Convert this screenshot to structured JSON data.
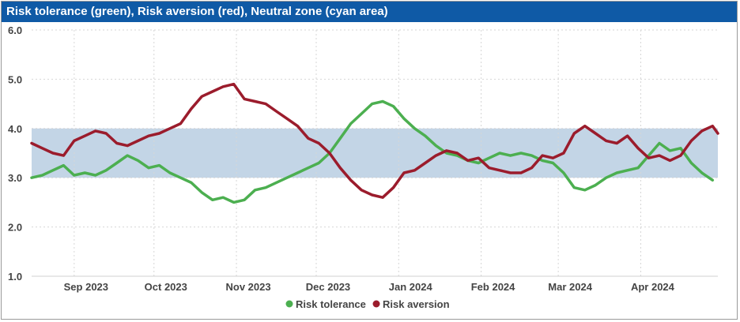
{
  "title": "Risk tolerance (green), Risk aversion (red), Neutral zone (cyan area)",
  "colors": {
    "tolerance": "#4caf50",
    "aversion": "#9b1c2c",
    "band": "#c3d5e6",
    "title_bg": "#0f5aa6"
  },
  "chart_data": {
    "type": "line",
    "ylim": [
      1.0,
      6.0
    ],
    "yticks": [
      "1.0",
      "2.0",
      "3.0",
      "4.0",
      "5.0",
      "6.0"
    ],
    "xlim": [
      "2023-08-16",
      "2024-04-30"
    ],
    "xticks": [
      {
        "date": "2023-09-01",
        "label": "Sep 2023"
      },
      {
        "date": "2023-10-01",
        "label": "Oct 2023"
      },
      {
        "date": "2023-11-01",
        "label": "Nov 2023"
      },
      {
        "date": "2023-12-01",
        "label": "Dec 2023"
      },
      {
        "date": "2024-01-01",
        "label": "Jan 2024"
      },
      {
        "date": "2024-02-01",
        "label": "Feb 2024"
      },
      {
        "date": "2024-03-01",
        "label": "Mar 2024"
      },
      {
        "date": "2024-04-01",
        "label": "Apr 2024"
      }
    ],
    "neutral_zone": [
      3.0,
      4.0
    ],
    "grid": true,
    "legend_position": "bottom",
    "series": [
      {
        "name": "Risk tolerance",
        "color": "#4caf50",
        "points": [
          [
            "2023-08-16",
            3.0
          ],
          [
            "2023-08-20",
            3.05
          ],
          [
            "2023-08-24",
            3.15
          ],
          [
            "2023-08-28",
            3.25
          ],
          [
            "2023-09-01",
            3.05
          ],
          [
            "2023-09-05",
            3.1
          ],
          [
            "2023-09-09",
            3.05
          ],
          [
            "2023-09-13",
            3.15
          ],
          [
            "2023-09-17",
            3.3
          ],
          [
            "2023-09-21",
            3.45
          ],
          [
            "2023-09-25",
            3.35
          ],
          [
            "2023-09-29",
            3.2
          ],
          [
            "2023-10-03",
            3.25
          ],
          [
            "2023-10-07",
            3.1
          ],
          [
            "2023-10-11",
            3.0
          ],
          [
            "2023-10-15",
            2.9
          ],
          [
            "2023-10-19",
            2.7
          ],
          [
            "2023-10-23",
            2.55
          ],
          [
            "2023-10-27",
            2.6
          ],
          [
            "2023-10-31",
            2.5
          ],
          [
            "2023-11-04",
            2.55
          ],
          [
            "2023-11-08",
            2.75
          ],
          [
            "2023-11-12",
            2.8
          ],
          [
            "2023-11-16",
            2.9
          ],
          [
            "2023-11-20",
            3.0
          ],
          [
            "2023-11-24",
            3.1
          ],
          [
            "2023-11-28",
            3.2
          ],
          [
            "2023-12-02",
            3.3
          ],
          [
            "2023-12-06",
            3.5
          ],
          [
            "2023-12-10",
            3.8
          ],
          [
            "2023-12-14",
            4.1
          ],
          [
            "2023-12-18",
            4.3
          ],
          [
            "2023-12-22",
            4.5
          ],
          [
            "2023-12-26",
            4.55
          ],
          [
            "2023-12-30",
            4.45
          ],
          [
            "2024-01-03",
            4.2
          ],
          [
            "2024-01-07",
            4.0
          ],
          [
            "2024-01-11",
            3.85
          ],
          [
            "2024-01-15",
            3.65
          ],
          [
            "2024-01-19",
            3.5
          ],
          [
            "2024-01-23",
            3.45
          ],
          [
            "2024-01-27",
            3.35
          ],
          [
            "2024-01-31",
            3.3
          ],
          [
            "2024-02-04",
            3.4
          ],
          [
            "2024-02-08",
            3.5
          ],
          [
            "2024-02-12",
            3.45
          ],
          [
            "2024-02-16",
            3.5
          ],
          [
            "2024-02-20",
            3.45
          ],
          [
            "2024-02-24",
            3.35
          ],
          [
            "2024-02-28",
            3.3
          ],
          [
            "2024-03-03",
            3.1
          ],
          [
            "2024-03-07",
            2.8
          ],
          [
            "2024-03-11",
            2.75
          ],
          [
            "2024-03-15",
            2.85
          ],
          [
            "2024-03-19",
            3.0
          ],
          [
            "2024-03-23",
            3.1
          ],
          [
            "2024-03-27",
            3.15
          ],
          [
            "2024-03-31",
            3.2
          ],
          [
            "2024-04-04",
            3.45
          ],
          [
            "2024-04-08",
            3.7
          ],
          [
            "2024-04-12",
            3.55
          ],
          [
            "2024-04-16",
            3.6
          ],
          [
            "2024-04-20",
            3.3
          ],
          [
            "2024-04-24",
            3.1
          ],
          [
            "2024-04-28",
            2.95
          ]
        ]
      },
      {
        "name": "Risk aversion",
        "color": "#9b1c2c",
        "points": [
          [
            "2023-08-16",
            3.7
          ],
          [
            "2023-08-20",
            3.6
          ],
          [
            "2023-08-24",
            3.5
          ],
          [
            "2023-08-28",
            3.45
          ],
          [
            "2023-09-01",
            3.75
          ],
          [
            "2023-09-05",
            3.85
          ],
          [
            "2023-09-09",
            3.95
          ],
          [
            "2023-09-13",
            3.9
          ],
          [
            "2023-09-17",
            3.7
          ],
          [
            "2023-09-21",
            3.65
          ],
          [
            "2023-09-25",
            3.75
          ],
          [
            "2023-09-29",
            3.85
          ],
          [
            "2023-10-03",
            3.9
          ],
          [
            "2023-10-07",
            4.0
          ],
          [
            "2023-10-11",
            4.1
          ],
          [
            "2023-10-15",
            4.4
          ],
          [
            "2023-10-19",
            4.65
          ],
          [
            "2023-10-23",
            4.75
          ],
          [
            "2023-10-27",
            4.85
          ],
          [
            "2023-10-31",
            4.9
          ],
          [
            "2023-11-04",
            4.6
          ],
          [
            "2023-11-08",
            4.55
          ],
          [
            "2023-11-12",
            4.5
          ],
          [
            "2023-11-16",
            4.35
          ],
          [
            "2023-11-20",
            4.2
          ],
          [
            "2023-11-24",
            4.05
          ],
          [
            "2023-11-28",
            3.8
          ],
          [
            "2023-12-02",
            3.7
          ],
          [
            "2023-12-06",
            3.5
          ],
          [
            "2023-12-10",
            3.2
          ],
          [
            "2023-12-14",
            2.95
          ],
          [
            "2023-12-18",
            2.75
          ],
          [
            "2023-12-22",
            2.65
          ],
          [
            "2023-12-26",
            2.6
          ],
          [
            "2023-12-30",
            2.8
          ],
          [
            "2024-01-03",
            3.1
          ],
          [
            "2024-01-07",
            3.15
          ],
          [
            "2024-01-11",
            3.3
          ],
          [
            "2024-01-15",
            3.45
          ],
          [
            "2024-01-19",
            3.55
          ],
          [
            "2024-01-23",
            3.5
          ],
          [
            "2024-01-27",
            3.35
          ],
          [
            "2024-01-31",
            3.4
          ],
          [
            "2024-02-04",
            3.2
          ],
          [
            "2024-02-08",
            3.15
          ],
          [
            "2024-02-12",
            3.1
          ],
          [
            "2024-02-16",
            3.1
          ],
          [
            "2024-02-20",
            3.2
          ],
          [
            "2024-02-24",
            3.45
          ],
          [
            "2024-02-28",
            3.4
          ],
          [
            "2024-03-03",
            3.5
          ],
          [
            "2024-03-07",
            3.9
          ],
          [
            "2024-03-11",
            4.05
          ],
          [
            "2024-03-15",
            3.9
          ],
          [
            "2024-03-19",
            3.75
          ],
          [
            "2024-03-23",
            3.7
          ],
          [
            "2024-03-27",
            3.85
          ],
          [
            "2024-03-31",
            3.6
          ],
          [
            "2024-04-04",
            3.4
          ],
          [
            "2024-04-08",
            3.45
          ],
          [
            "2024-04-12",
            3.35
          ],
          [
            "2024-04-16",
            3.45
          ],
          [
            "2024-04-20",
            3.75
          ],
          [
            "2024-04-24",
            3.95
          ],
          [
            "2024-04-28",
            4.05
          ],
          [
            "2024-04-30",
            3.9
          ]
        ]
      }
    ]
  }
}
